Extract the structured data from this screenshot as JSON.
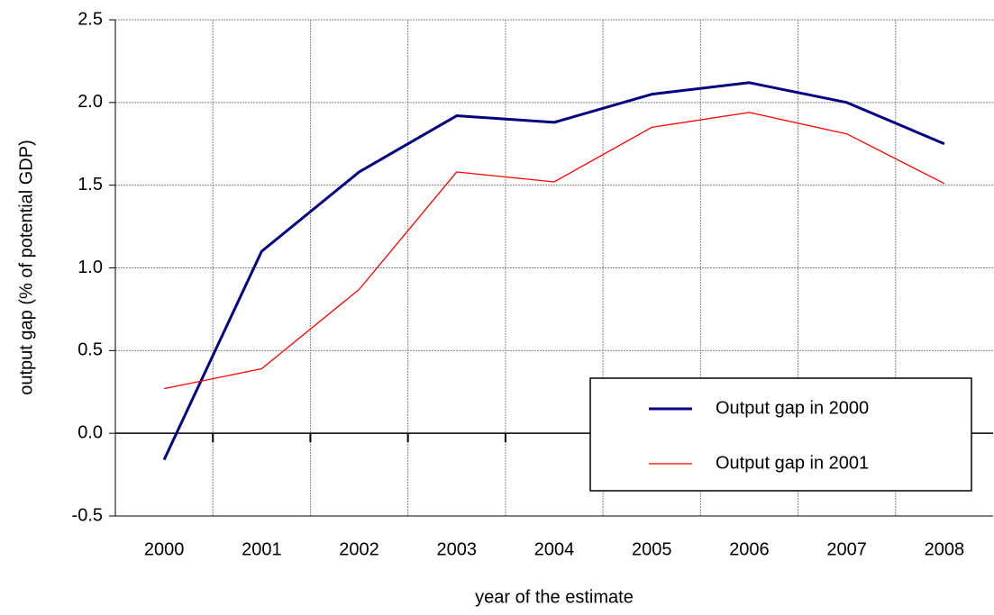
{
  "chart_data": {
    "type": "line",
    "y_label": "output gap (% of potential GDP)",
    "x_label": "year of the estimate",
    "categories": [
      "2000",
      "2001",
      "2002",
      "2003",
      "2004",
      "2005",
      "2006",
      "2007",
      "2008"
    ],
    "series": [
      {
        "name": "Output gap in 2000",
        "color": "#000080",
        "width": 3,
        "values": [
          -0.16,
          1.1,
          1.58,
          1.92,
          1.88,
          2.05,
          2.12,
          2.0,
          1.75
        ]
      },
      {
        "name": "Output gap in 2001",
        "color": "#ff0000",
        "width": 1.3,
        "values": [
          0.27,
          0.39,
          0.87,
          1.58,
          1.52,
          1.85,
          1.94,
          1.81,
          1.51
        ]
      }
    ],
    "ylim": [
      -0.5,
      2.5
    ],
    "yticks": [
      -0.5,
      {
        "value": 0,
        "label": "0.0"
      },
      0.5,
      {
        "value": 1,
        "label": "1.0"
      },
      1.5,
      {
        "value": 2,
        "label": "2.0"
      },
      2.5
    ],
    "grid": true,
    "legend": "lower right"
  }
}
